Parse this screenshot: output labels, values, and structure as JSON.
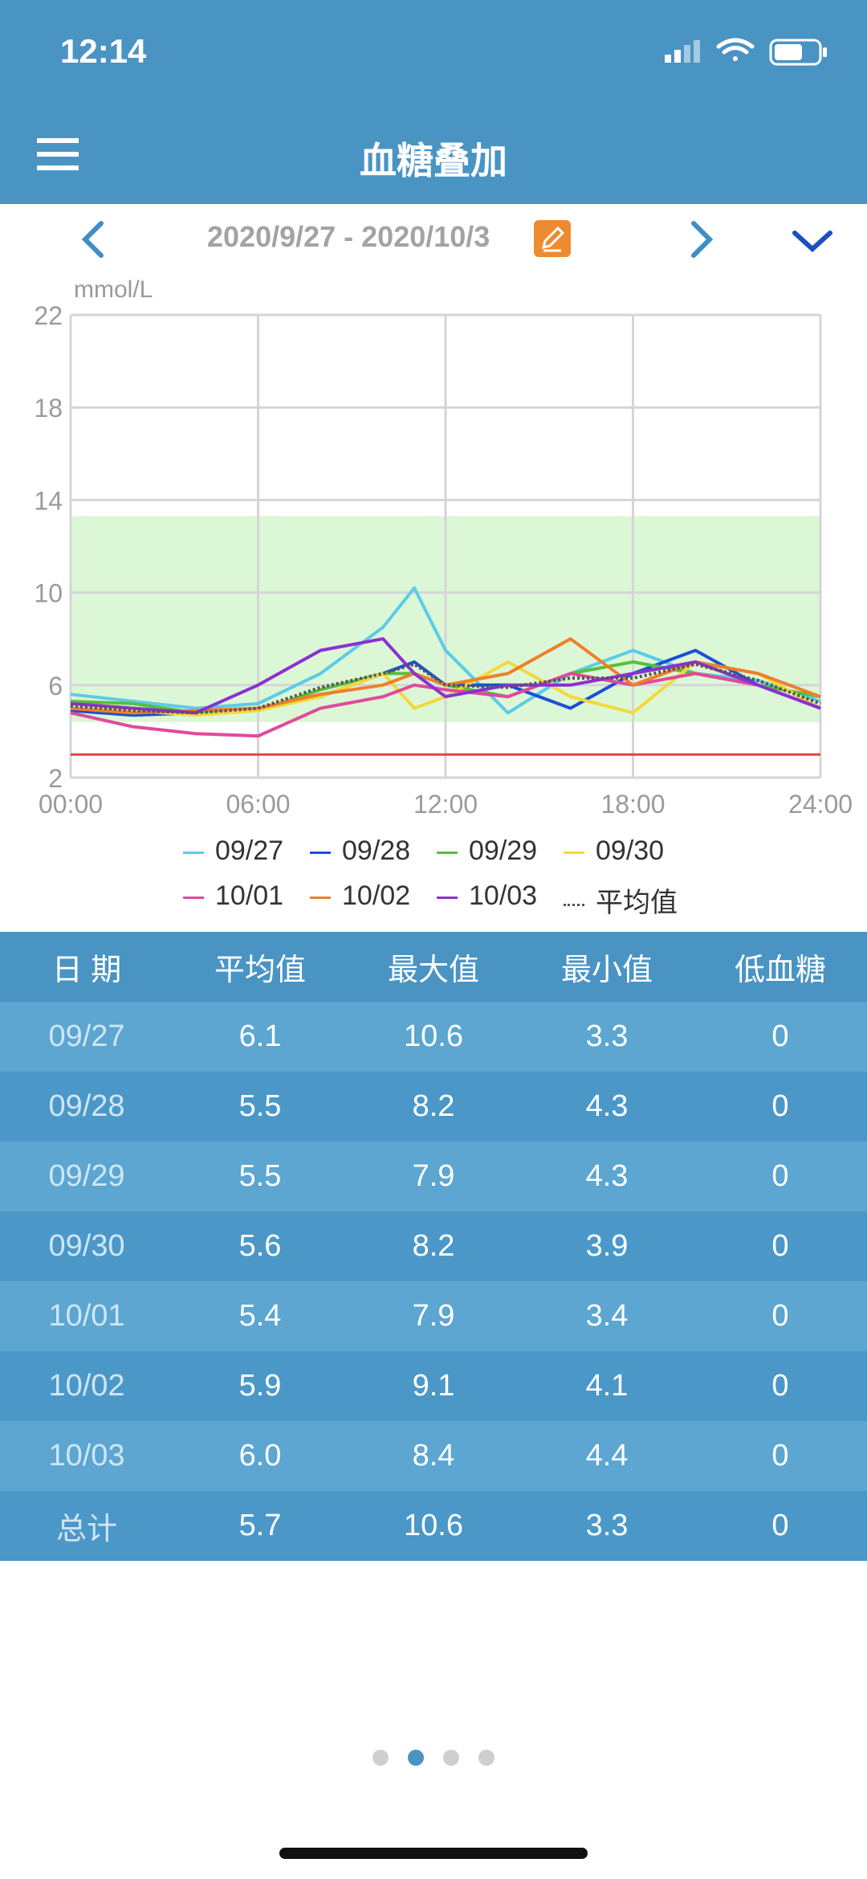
{
  "status_bar": {
    "time": "12:14"
  },
  "header": {
    "title": "血糖叠加"
  },
  "date_nav": {
    "range": "2020/9/27 - 2020/10/3"
  },
  "chart_data": {
    "type": "line",
    "ylabel": "mmol/L",
    "xlim": [
      "00:00",
      "24:00"
    ],
    "ylim": [
      2,
      22
    ],
    "x_ticks": [
      "00:00",
      "06:00",
      "12:00",
      "18:00",
      "24:00"
    ],
    "y_ticks": [
      2,
      6,
      10,
      14,
      18,
      22
    ],
    "target_range": [
      4.4,
      13.3
    ],
    "low_threshold": 3.0,
    "x_hours": [
      0,
      2,
      4,
      6,
      8,
      10,
      11,
      12,
      14,
      16,
      18,
      20,
      22,
      24
    ],
    "series": [
      {
        "name": "09/27",
        "color": "#5ccbe8",
        "values": [
          5.6,
          5.3,
          5.0,
          5.2,
          6.5,
          8.5,
          10.2,
          7.5,
          4.8,
          6.5,
          7.5,
          6.5,
          6.2,
          5.3
        ]
      },
      {
        "name": "09/28",
        "color": "#1a4fd8",
        "values": [
          4.9,
          4.7,
          4.8,
          5.0,
          5.5,
          6.5,
          7.0,
          6.0,
          6.0,
          5.0,
          6.5,
          7.5,
          6.0,
          5.0
        ]
      },
      {
        "name": "09/29",
        "color": "#56c03a",
        "values": [
          5.3,
          5.2,
          4.8,
          4.9,
          5.8,
          6.5,
          6.5,
          6.0,
          5.5,
          6.5,
          7.0,
          6.5,
          6.0,
          5.5
        ]
      },
      {
        "name": "09/30",
        "color": "#f3d93a",
        "values": [
          5.0,
          4.9,
          4.7,
          4.9,
          5.5,
          6.5,
          5.0,
          5.5,
          7.0,
          5.5,
          4.8,
          7.0,
          6.5,
          5.0
        ]
      },
      {
        "name": "10/01",
        "color": "#e04a9b",
        "values": [
          4.8,
          4.2,
          3.9,
          3.8,
          5.0,
          5.5,
          6.0,
          5.8,
          5.5,
          6.5,
          6.0,
          6.5,
          6.0,
          5.0
        ]
      },
      {
        "name": "10/02",
        "color": "#ef7f2a",
        "values": [
          5.0,
          4.8,
          4.9,
          5.0,
          5.6,
          6.0,
          6.5,
          6.0,
          6.5,
          8.0,
          6.0,
          7.0,
          6.5,
          5.5
        ]
      },
      {
        "name": "10/03",
        "color": "#8c2fd4",
        "values": [
          5.2,
          5.0,
          4.8,
          6.0,
          7.5,
          8.0,
          6.5,
          5.5,
          6.0,
          6.0,
          6.5,
          7.0,
          6.0,
          5.0
        ]
      },
      {
        "name": "平均值",
        "color": "#555555",
        "values": [
          5.1,
          4.9,
          4.8,
          5.0,
          5.9,
          6.5,
          6.9,
          6.0,
          5.9,
          6.3,
          6.3,
          6.9,
          6.2,
          5.2
        ]
      }
    ]
  },
  "legend": [
    {
      "label": "09/27",
      "color": "#5ccbe8"
    },
    {
      "label": "09/28",
      "color": "#1a4fd8"
    },
    {
      "label": "09/29",
      "color": "#56c03a"
    },
    {
      "label": "09/30",
      "color": "#f3d93a"
    },
    {
      "label": "10/01",
      "color": "#e04a9b"
    },
    {
      "label": "10/02",
      "color": "#ef7f2a"
    },
    {
      "label": "10/03",
      "color": "#8c2fd4"
    },
    {
      "label": "平均值",
      "color": "#555555"
    }
  ],
  "table": {
    "headers": [
      "日 期",
      "平均值",
      "最大值",
      "最小值",
      "低血糖"
    ],
    "rows": [
      [
        "09/27",
        "6.1",
        "10.6",
        "3.3",
        "0"
      ],
      [
        "09/28",
        "5.5",
        "8.2",
        "4.3",
        "0"
      ],
      [
        "09/29",
        "5.5",
        "7.9",
        "4.3",
        "0"
      ],
      [
        "09/30",
        "5.6",
        "8.2",
        "3.9",
        "0"
      ],
      [
        "10/01",
        "5.4",
        "7.9",
        "3.4",
        "0"
      ],
      [
        "10/02",
        "5.9",
        "9.1",
        "4.1",
        "0"
      ],
      [
        "10/03",
        "6.0",
        "8.4",
        "4.4",
        "0"
      ],
      [
        "总计",
        "5.7",
        "10.6",
        "3.3",
        "0"
      ]
    ]
  },
  "pager": {
    "count": 4,
    "active": 1
  }
}
